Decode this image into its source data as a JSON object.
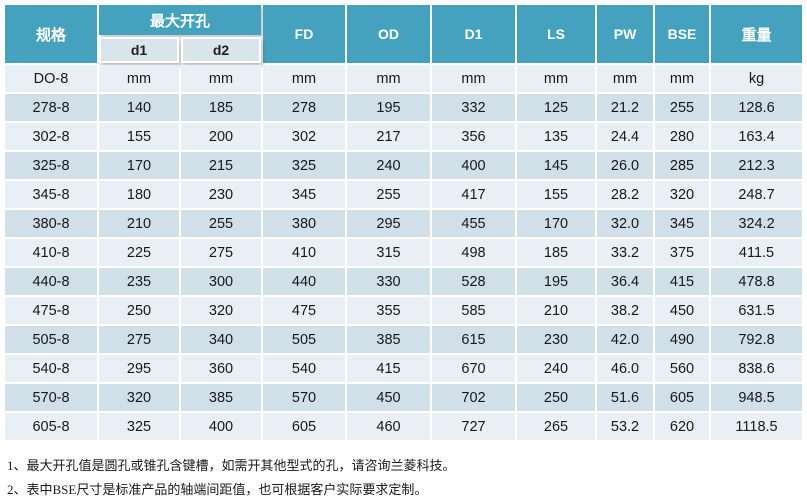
{
  "table": {
    "header": {
      "spec": "规格",
      "max_opening_group": "最大开孔",
      "sub_d1": "d1",
      "sub_d2": "d2",
      "fd": "FD",
      "od": "OD",
      "col_D1": "D1",
      "ls": "LS",
      "pw": "PW",
      "bse": "BSE",
      "weight": "重量"
    },
    "units_row": [
      "DO-8",
      "mm",
      "mm",
      "mm",
      "mm",
      "mm",
      "mm",
      "mm",
      "mm",
      "kg"
    ],
    "rows": [
      [
        "278-8",
        "140",
        "185",
        "278",
        "195",
        "332",
        "125",
        "21.2",
        "255",
        "128.6"
      ],
      [
        "302-8",
        "155",
        "200",
        "302",
        "217",
        "356",
        "135",
        "24.4",
        "280",
        "163.4"
      ],
      [
        "325-8",
        "170",
        "215",
        "325",
        "240",
        "400",
        "145",
        "26.0",
        "285",
        "212.3"
      ],
      [
        "345-8",
        "180",
        "230",
        "345",
        "255",
        "417",
        "155",
        "28.2",
        "320",
        "248.7"
      ],
      [
        "380-8",
        "210",
        "255",
        "380",
        "295",
        "455",
        "170",
        "32.0",
        "345",
        "324.2"
      ],
      [
        "410-8",
        "225",
        "275",
        "410",
        "315",
        "498",
        "185",
        "33.2",
        "375",
        "411.5"
      ],
      [
        "440-8",
        "235",
        "300",
        "440",
        "330",
        "528",
        "195",
        "36.4",
        "415",
        "478.8"
      ],
      [
        "475-8",
        "250",
        "320",
        "475",
        "355",
        "585",
        "210",
        "38.2",
        "450",
        "631.5"
      ],
      [
        "505-8",
        "275",
        "340",
        "505",
        "385",
        "615",
        "230",
        "42.0",
        "490",
        "792.8"
      ],
      [
        "540-8",
        "295",
        "360",
        "540",
        "415",
        "670",
        "240",
        "46.0",
        "560",
        "838.6"
      ],
      [
        "570-8",
        "320",
        "385",
        "570",
        "450",
        "702",
        "250",
        "51.6",
        "605",
        "948.5"
      ],
      [
        "605-8",
        "325",
        "400",
        "605",
        "460",
        "727",
        "265",
        "53.2",
        "620",
        "1118.5"
      ]
    ]
  },
  "notes": [
    "1、最大开孔值是圆孔或锥孔含键槽，如需开其他型式的孔，请咨询兰菱科技。",
    "2、表中BSE尺寸是标准产品的轴端间距值，也可根据客户实际要求定制。"
  ],
  "colors": {
    "header_teal": "#45A2BE",
    "sub_header_bg": "#D9E4EB",
    "row_light": "#E9F0F5",
    "row_dark": "#D0DFE8",
    "cell_text": "#18181b"
  }
}
